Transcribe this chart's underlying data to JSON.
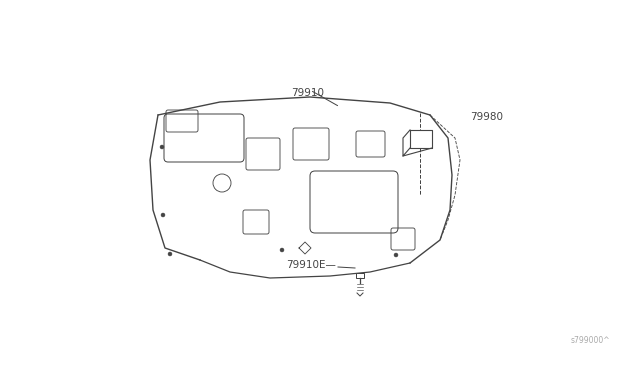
{
  "background_color": "#ffffff",
  "part_label_79910": "79910",
  "part_label_79980": "79980",
  "part_label_79910E": "79910E—",
  "watermark": "s799000^",
  "line_color": "#444444",
  "line_width": 0.9,
  "figsize": [
    6.4,
    3.72
  ],
  "dpi": 100
}
